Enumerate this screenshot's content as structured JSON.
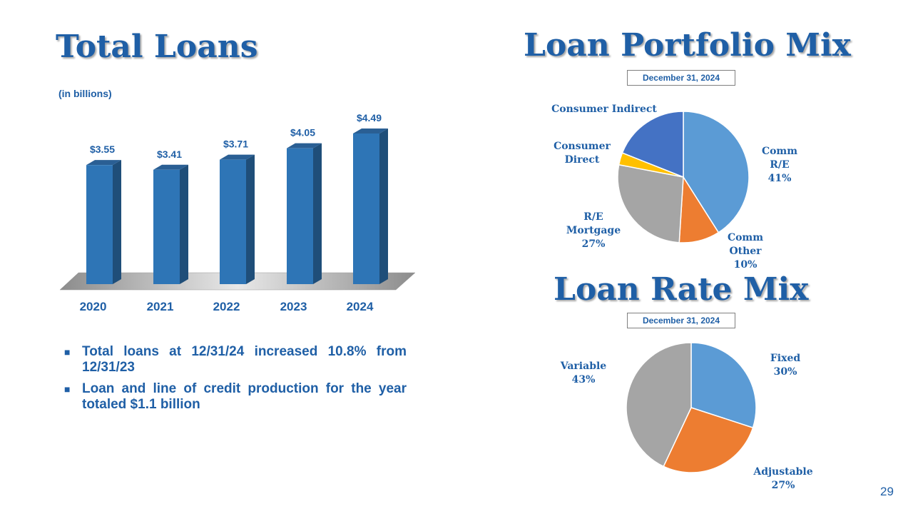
{
  "page_number": "29",
  "bullets": [
    "Total loans at 12/31/24 increased 10.8% from 12/31/23",
    "Loan and line of credit production for the year totaled $1.1 billion"
  ],
  "chart_data": [
    {
      "type": "bar",
      "title": "Total Loans",
      "subtitle": "(in billions)",
      "categories": [
        "2020",
        "2021",
        "2022",
        "2023",
        "2024"
      ],
      "values": [
        3.55,
        3.41,
        3.71,
        4.05,
        4.49
      ],
      "value_labels": [
        "$3.55",
        "$3.41",
        "$3.71",
        "$4.05",
        "$4.49"
      ],
      "ylim": [
        0,
        4.6
      ],
      "grid": false,
      "color": "#2e75b6",
      "color_side": "#1f4e79"
    },
    {
      "type": "pie",
      "title": "Loan Portfolio Mix",
      "subtitle": "December 31, 2024",
      "slices": [
        {
          "label": "Comm R/E",
          "pct_label": "41%",
          "value": 41,
          "color": "#5b9bd5"
        },
        {
          "label": "Comm Other",
          "pct_label": "10%",
          "value": 10,
          "color": "#ed7d31"
        },
        {
          "label": "R/E Mortgage",
          "pct_label": "27%",
          "value": 27,
          "color": "#a5a5a5"
        },
        {
          "label": "Consumer Direct",
          "pct_label": "",
          "value": 3,
          "color": "#ffc000"
        },
        {
          "label": "Consumer Indirect",
          "pct_label": "",
          "value": 19,
          "color": "#4472c4"
        }
      ]
    },
    {
      "type": "pie",
      "title": "Loan Rate Mix",
      "subtitle": "December 31, 2024",
      "slices": [
        {
          "label": "Fixed",
          "pct_label": "30%",
          "value": 30,
          "color": "#5b9bd5"
        },
        {
          "label": "Adjustable",
          "pct_label": "27%",
          "value": 27,
          "color": "#ed7d31"
        },
        {
          "label": "Variable",
          "pct_label": "43%",
          "value": 43,
          "color": "#a5a5a5"
        }
      ]
    }
  ]
}
